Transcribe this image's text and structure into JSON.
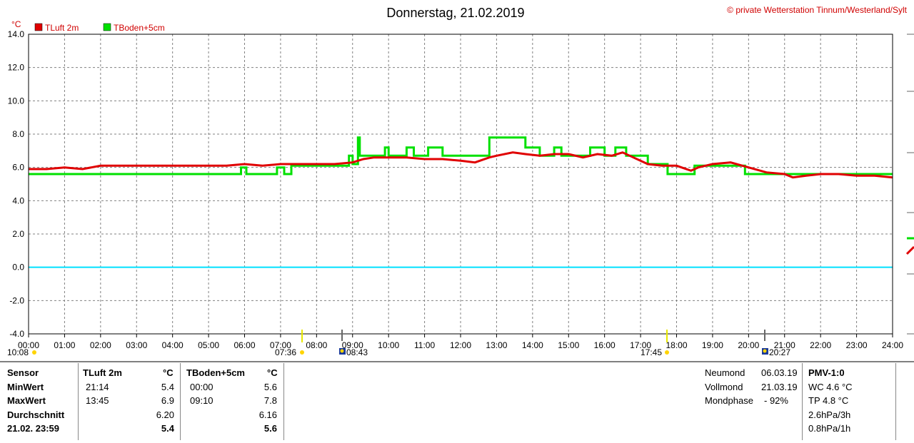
{
  "header": {
    "title": "Donnerstag, 21.02.2019",
    "copyright": "© private Wetterstation Tinnum/Westerland/Sylt",
    "unit": "°C"
  },
  "colors": {
    "tluft": "#e00000",
    "tboden": "#00e000",
    "zero": "#00e0ff",
    "grid": "#808080"
  },
  "chart_data": {
    "type": "line",
    "title": "Donnerstag, 21.02.2019",
    "ylabel": "°C",
    "ylim": [
      -4.0,
      14.0
    ],
    "y_ticks": [
      "14.0",
      "12.0",
      "10.0",
      "8.0",
      "6.0",
      "4.0",
      "2.0",
      "0.0",
      "-2.0",
      "-4.0"
    ],
    "y_tick_values": [
      14,
      12,
      10,
      8,
      6,
      4,
      2,
      0,
      -2,
      -4
    ],
    "xlim": [
      0,
      24
    ],
    "x_ticks": [
      "00:00",
      "01:00",
      "02:00",
      "03:00",
      "04:00",
      "05:00",
      "06:00",
      "07:00",
      "08:00",
      "09:00",
      "10:00",
      "11:00",
      "12:00",
      "13:00",
      "14:00",
      "15:00",
      "16:00",
      "17:00",
      "18:00",
      "19:00",
      "20:00",
      "21:00",
      "22:00",
      "23:00",
      "24:00"
    ],
    "grid": true,
    "legend": "top-left",
    "series": [
      {
        "name": "TLuft 2m",
        "color": "#e00000",
        "x": [
          0,
          0.5,
          1,
          1.5,
          2,
          3,
          4,
          5,
          5.5,
          6,
          6.5,
          7,
          7.5,
          8,
          8.5,
          9,
          9.3,
          9.6,
          10,
          10.5,
          11,
          11.5,
          12,
          12.4,
          12.8,
          13,
          13.45,
          13.8,
          14.2,
          14.6,
          15,
          15.4,
          15.8,
          16.2,
          16.5,
          16.8,
          17.2,
          17.6,
          18,
          18.4,
          18.6,
          19,
          19.5,
          20,
          20.5,
          21,
          21.23,
          21.6,
          22,
          22.5,
          23,
          23.5,
          24
        ],
        "y": [
          5.9,
          5.9,
          6.0,
          5.9,
          6.1,
          6.1,
          6.1,
          6.1,
          6.1,
          6.2,
          6.1,
          6.2,
          6.2,
          6.2,
          6.2,
          6.3,
          6.5,
          6.6,
          6.6,
          6.6,
          6.5,
          6.5,
          6.4,
          6.3,
          6.6,
          6.7,
          6.9,
          6.8,
          6.7,
          6.8,
          6.8,
          6.6,
          6.8,
          6.7,
          6.9,
          6.6,
          6.2,
          6.1,
          6.1,
          5.8,
          6.0,
          6.2,
          6.3,
          6.0,
          5.7,
          5.6,
          5.4,
          5.5,
          5.6,
          5.6,
          5.5,
          5.5,
          5.4
        ]
      },
      {
        "name": "TBoden+5cm",
        "color": "#00e000",
        "x": [
          0,
          5.9,
          5.9,
          6.05,
          6.05,
          6.9,
          6.9,
          7.1,
          7.1,
          7.3,
          7.3,
          8.9,
          8.9,
          9.0,
          9.0,
          9.15,
          9.15,
          9.2,
          9.2,
          9.9,
          9.9,
          10.0,
          10.0,
          10.5,
          10.5,
          10.7,
          10.7,
          11.1,
          11.1,
          11.5,
          11.5,
          12.8,
          12.8,
          13.8,
          13.8,
          14.2,
          14.2,
          14.6,
          14.6,
          14.8,
          14.8,
          15.6,
          15.6,
          16.0,
          16.0,
          16.3,
          16.3,
          16.6,
          16.6,
          17.2,
          17.2,
          17.75,
          17.75,
          18.5,
          18.5,
          19.9,
          19.9,
          21.0,
          21.0,
          24
        ],
        "y": [
          5.6,
          5.6,
          6.0,
          6.0,
          5.6,
          5.6,
          6.0,
          6.0,
          5.6,
          5.6,
          6.1,
          6.1,
          6.7,
          6.7,
          6.2,
          6.2,
          7.8,
          7.8,
          6.7,
          6.7,
          7.2,
          7.2,
          6.7,
          6.7,
          7.2,
          7.2,
          6.7,
          6.7,
          7.2,
          7.2,
          6.7,
          6.7,
          7.8,
          7.8,
          7.2,
          7.2,
          6.7,
          6.7,
          7.2,
          7.2,
          6.7,
          6.7,
          7.2,
          7.2,
          6.7,
          6.7,
          7.2,
          7.2,
          6.7,
          6.7,
          6.2,
          6.2,
          5.6,
          5.6,
          6.1,
          6.1,
          5.6,
          5.6,
          5.6,
          5.6
        ]
      }
    ],
    "markers": [
      {
        "label": "10:08",
        "symbol": "moonrise"
      },
      {
        "label": "07:36",
        "symbol": "sunrise"
      },
      {
        "label": "08:43",
        "symbol": "moonset"
      },
      {
        "label": "17:45",
        "symbol": "sunset"
      },
      {
        "label": "20:27",
        "symbol": "moonset"
      }
    ]
  },
  "table": {
    "col_sensor": "Sensor",
    "col_tluft": "TLuft 2m",
    "col_tboden": "TBoden+5cm",
    "unit_label": "°C",
    "rows": [
      {
        "label": "MinWert",
        "tluft_time": "21:14",
        "tluft_val": "5.4",
        "tboden_time": "00:00",
        "tboden_val": "5.6"
      },
      {
        "label": "MaxWert",
        "tluft_time": "13:45",
        "tluft_val": "6.9",
        "tboden_time": "09:10",
        "tboden_val": "7.8"
      },
      {
        "label": "Durchschnitt",
        "tluft_time": "",
        "tluft_val": "6.20",
        "tboden_time": "",
        "tboden_val": "6.16"
      },
      {
        "label": "21.02. 23:59",
        "tluft_time": "",
        "tluft_val": "5.4",
        "tboden_time": "",
        "tboden_val": "5.6"
      }
    ]
  },
  "moon": [
    {
      "label": "Neumond",
      "value": "06.03.19"
    },
    {
      "label": "Vollmond",
      "value": "21.03.19"
    },
    {
      "label": "Mondphase",
      "value": "- 92%"
    }
  ],
  "pmv": {
    "title": "PMV-1:0",
    "items": [
      "WC 4.6 °C",
      "TP 4.8 °C",
      "2.6hPa/3h",
      "0.8hPa/1h"
    ]
  }
}
